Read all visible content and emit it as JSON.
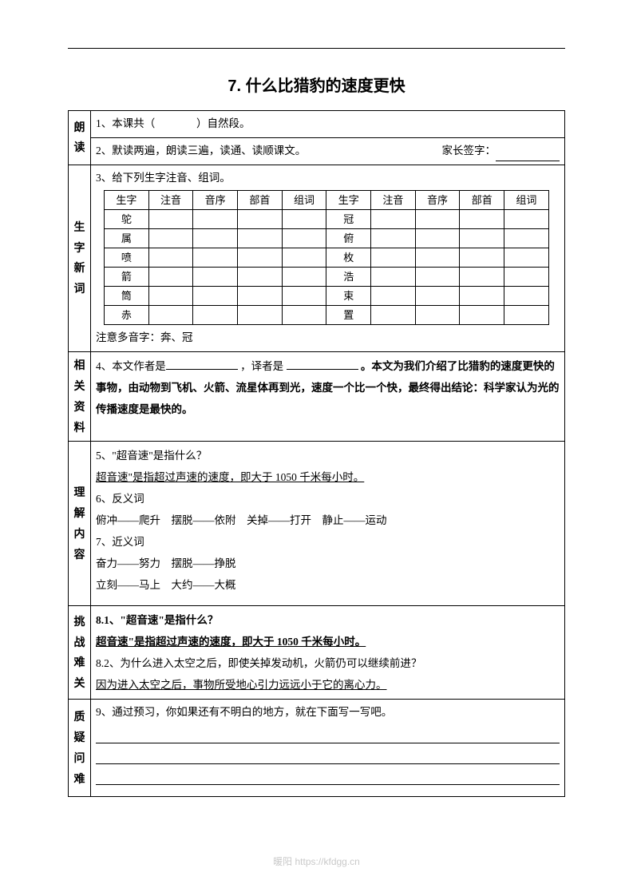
{
  "title": "7. 什么比猎豹的速度更快",
  "sections": {
    "langdu": {
      "label": "朗读",
      "line1_pre": "1、本课共（",
      "line1_post": "）自然段。",
      "line2_left": "2、默读两遍，朗读三遍，读通、读顺课文。",
      "line2_right": "家长签字："
    },
    "shengzi": {
      "label": "生字新词",
      "intro": "3、给下列生字注音、组词。",
      "headers": [
        "生字",
        "注音",
        "音序",
        "部首",
        "组词",
        "生字",
        "注音",
        "音序",
        "部首",
        "组词"
      ],
      "rows": [
        [
          "鸵",
          "",
          "",
          "",
          "",
          "冠",
          "",
          "",
          "",
          ""
        ],
        [
          "属",
          "",
          "",
          "",
          "",
          "俯",
          "",
          "",
          "",
          ""
        ],
        [
          "喷",
          "",
          "",
          "",
          "",
          "枚",
          "",
          "",
          "",
          ""
        ],
        [
          "箭",
          "",
          "",
          "",
          "",
          "浩",
          "",
          "",
          "",
          ""
        ],
        [
          "筒",
          "",
          "",
          "",
          "",
          "束",
          "",
          "",
          "",
          ""
        ],
        [
          "赤",
          "",
          "",
          "",
          "",
          "置",
          "",
          "",
          "",
          ""
        ]
      ],
      "note": "注意多音字：奔、冠"
    },
    "ziliao": {
      "label": "相关资料",
      "q4_a": "4、本文作者是",
      "q4_b": "，译者是",
      "q4_c": "。本文为我们介绍了比猎豹的速度更快的事物，由动物到飞机、火箭、流星体再到光，速度一个比一个快，最终得出结论：科学家认为光的传播速度是最快的。"
    },
    "lijie": {
      "label": "理解内容",
      "q5": "5、\"超音速\"是指什么？",
      "a5": "超音速\"是指超过声速的速度，即大于 1050 千米每小时。",
      "q6": "6、反义词",
      "a6": "俯冲——爬升　摆脱——依附　关掉——打开　静止——运动",
      "q7": "7、近义词",
      "a7a": "奋力——努力　摆脱——挣脱",
      "a7b": "立刻——马上　大约——大概"
    },
    "tiaozhan": {
      "label": "挑战难关",
      "q81": "8.1、\"超音速\"是指什么？",
      "a81": "超音速\"是指超过声速的速度，即大于 1050 千米每小时。",
      "q82": "8.2、为什么进入太空之后，即使关掉发动机，火箭仍可以继续前进？",
      "a82": "因为进入太空之后，事物所受地心引力远远小于它的离心力。"
    },
    "zhiyi": {
      "label": "质疑问难",
      "q9": "9、通过预习，你如果还有不明白的地方，就在下面写一写吧。"
    }
  },
  "footer": "暖阳 https://kfdgg.cn",
  "colors": {
    "text": "#000000",
    "bg": "#ffffff",
    "footer": "#c9c9c9",
    "border": "#000000"
  },
  "fontsizes": {
    "title": 20,
    "body": 13.5,
    "inner": 13,
    "footer": 12
  }
}
